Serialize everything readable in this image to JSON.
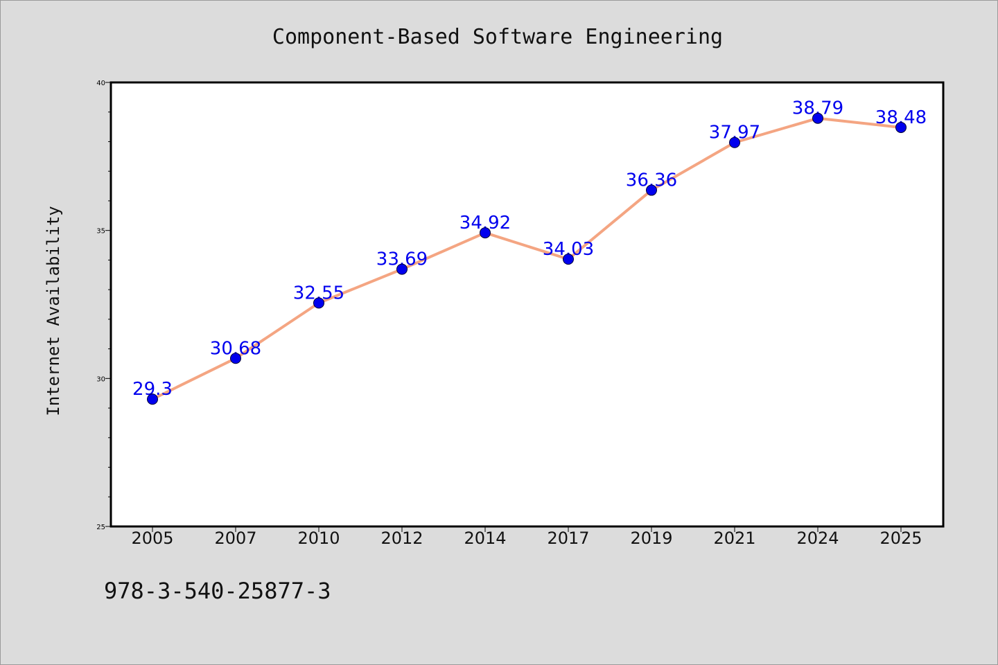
{
  "chart_data": {
    "type": "line",
    "title": "Component-Based Software Engineering",
    "xlabel": "",
    "ylabel": "Internet Availability",
    "categories": [
      "2005",
      "2007",
      "2010",
      "2012",
      "2014",
      "2017",
      "2019",
      "2021",
      "2024",
      "2025"
    ],
    "series": [
      {
        "values": [
          29.3,
          30.68,
          32.55,
          33.69,
          34.92,
          34.03,
          36.36,
          37.97,
          38.79,
          38.48
        ],
        "labels": [
          "29.3",
          "30.68",
          "32.55",
          "33.69",
          "34.92",
          "34.03",
          "36.36",
          "37.97",
          "38.79",
          "38.48"
        ]
      }
    ],
    "ylim": [
      25,
      40
    ],
    "yticks": [
      "25",
      "30",
      "35",
      "40"
    ],
    "grid": false,
    "colors": {
      "line": "#f4a582",
      "marker": "#0000ee",
      "label": "#0000ee",
      "background": "#dcdcdc",
      "plot_bg": "#ffffff"
    }
  },
  "footnote": "978-3-540-25877-3"
}
